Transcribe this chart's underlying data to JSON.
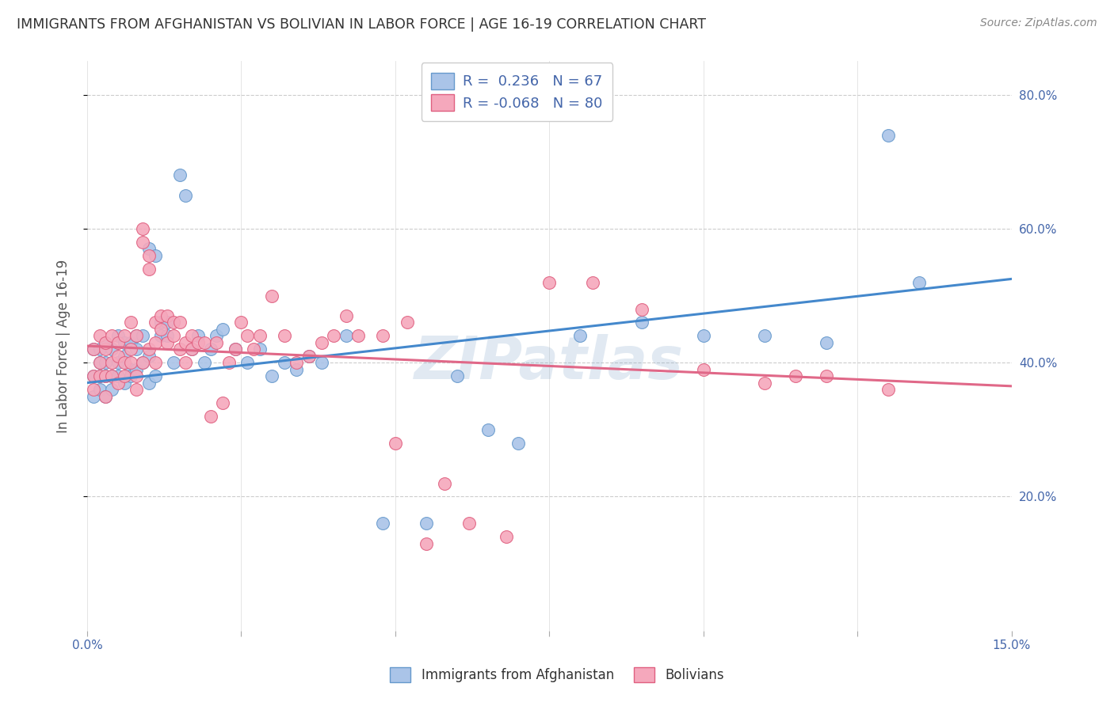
{
  "title": "IMMIGRANTS FROM AFGHANISTAN VS BOLIVIAN IN LABOR FORCE | AGE 16-19 CORRELATION CHART",
  "source": "Source: ZipAtlas.com",
  "ylabel": "In Labor Force | Age 16-19",
  "xlim": [
    0.0,
    0.15
  ],
  "ylim": [
    0.0,
    0.85
  ],
  "x_ticks_major": [
    0.0,
    0.025,
    0.05,
    0.075,
    0.1,
    0.125,
    0.15
  ],
  "x_tick_labels_show": [
    "0.0%",
    "",
    "",
    "",
    "",
    "",
    "15.0%"
  ],
  "y_ticks": [
    0.2,
    0.4,
    0.6,
    0.8
  ],
  "y_tick_labels": [
    "20.0%",
    "40.0%",
    "60.0%",
    "80.0%"
  ],
  "afghanistan_color": "#aac4e8",
  "bolivia_color": "#f5a8bc",
  "afghanistan_edge_color": "#6699cc",
  "bolivia_edge_color": "#e06080",
  "afghanistan_line_color": "#4488cc",
  "bolivia_line_color": "#e06888",
  "R_afg": 0.236,
  "N_afg": 67,
  "R_bol": -0.068,
  "N_bol": 80,
  "afghanistan_x": [
    0.001,
    0.001,
    0.001,
    0.002,
    0.002,
    0.002,
    0.002,
    0.003,
    0.003,
    0.003,
    0.003,
    0.004,
    0.004,
    0.004,
    0.005,
    0.005,
    0.005,
    0.006,
    0.006,
    0.006,
    0.007,
    0.007,
    0.007,
    0.008,
    0.008,
    0.008,
    0.009,
    0.009,
    0.01,
    0.01,
    0.01,
    0.011,
    0.011,
    0.012,
    0.012,
    0.013,
    0.013,
    0.014,
    0.015,
    0.016,
    0.017,
    0.018,
    0.019,
    0.02,
    0.021,
    0.022,
    0.024,
    0.026,
    0.028,
    0.03,
    0.032,
    0.034,
    0.036,
    0.038,
    0.042,
    0.048,
    0.055,
    0.06,
    0.065,
    0.07,
    0.08,
    0.09,
    0.1,
    0.11,
    0.12,
    0.13,
    0.135
  ],
  "afghanistan_y": [
    0.38,
    0.42,
    0.35,
    0.4,
    0.38,
    0.36,
    0.42,
    0.38,
    0.4,
    0.35,
    0.43,
    0.38,
    0.42,
    0.36,
    0.4,
    0.38,
    0.44,
    0.37,
    0.41,
    0.43,
    0.39,
    0.43,
    0.38,
    0.42,
    0.39,
    0.44,
    0.4,
    0.44,
    0.37,
    0.41,
    0.57,
    0.38,
    0.56,
    0.44,
    0.46,
    0.44,
    0.46,
    0.4,
    0.68,
    0.65,
    0.42,
    0.44,
    0.4,
    0.42,
    0.44,
    0.45,
    0.42,
    0.4,
    0.42,
    0.38,
    0.4,
    0.39,
    0.41,
    0.4,
    0.44,
    0.16,
    0.16,
    0.38,
    0.3,
    0.28,
    0.44,
    0.46,
    0.44,
    0.44,
    0.43,
    0.74,
    0.52
  ],
  "bolivia_x": [
    0.001,
    0.001,
    0.001,
    0.002,
    0.002,
    0.002,
    0.003,
    0.003,
    0.003,
    0.003,
    0.004,
    0.004,
    0.004,
    0.005,
    0.005,
    0.005,
    0.006,
    0.006,
    0.006,
    0.007,
    0.007,
    0.007,
    0.008,
    0.008,
    0.008,
    0.009,
    0.009,
    0.009,
    0.01,
    0.01,
    0.01,
    0.011,
    0.011,
    0.011,
    0.012,
    0.012,
    0.013,
    0.013,
    0.014,
    0.014,
    0.015,
    0.015,
    0.016,
    0.016,
    0.017,
    0.017,
    0.018,
    0.019,
    0.02,
    0.021,
    0.022,
    0.023,
    0.024,
    0.025,
    0.026,
    0.027,
    0.028,
    0.03,
    0.032,
    0.034,
    0.036,
    0.038,
    0.04,
    0.042,
    0.044,
    0.048,
    0.052,
    0.058,
    0.062,
    0.068,
    0.075,
    0.082,
    0.09,
    0.1,
    0.11,
    0.12,
    0.13,
    0.05,
    0.055,
    0.115
  ],
  "bolivia_y": [
    0.38,
    0.42,
    0.36,
    0.4,
    0.38,
    0.44,
    0.42,
    0.38,
    0.35,
    0.43,
    0.4,
    0.38,
    0.44,
    0.37,
    0.41,
    0.43,
    0.4,
    0.44,
    0.38,
    0.42,
    0.46,
    0.4,
    0.38,
    0.44,
    0.36,
    0.6,
    0.58,
    0.4,
    0.42,
    0.56,
    0.54,
    0.43,
    0.46,
    0.4,
    0.45,
    0.47,
    0.43,
    0.47,
    0.44,
    0.46,
    0.42,
    0.46,
    0.43,
    0.4,
    0.42,
    0.44,
    0.43,
    0.43,
    0.32,
    0.43,
    0.34,
    0.4,
    0.42,
    0.46,
    0.44,
    0.42,
    0.44,
    0.5,
    0.44,
    0.4,
    0.41,
    0.43,
    0.44,
    0.47,
    0.44,
    0.44,
    0.46,
    0.22,
    0.16,
    0.14,
    0.52,
    0.52,
    0.48,
    0.39,
    0.37,
    0.38,
    0.36,
    0.28,
    0.13,
    0.38
  ],
  "watermark": "ZIPatlas",
  "background_color": "#ffffff",
  "grid_color": "#cccccc",
  "title_color": "#333333",
  "axis_label_color": "#555555",
  "tick_color": "#4466aa",
  "legend_bg": "#ffffff"
}
